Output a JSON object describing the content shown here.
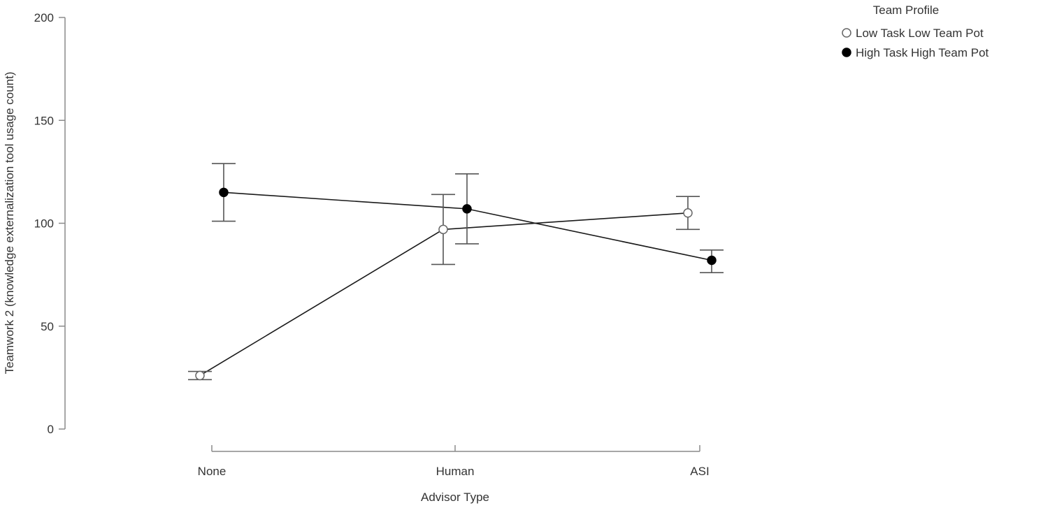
{
  "chart_data": {
    "type": "line",
    "title": "",
    "xlabel": "Advisor Type",
    "ylabel": "Teamwork 2 (knowledge externalization tool usage count)",
    "categories": [
      "None",
      "Human",
      "ASI"
    ],
    "ylim": [
      0,
      200
    ],
    "yticks": [
      0,
      50,
      100,
      150,
      200
    ],
    "grid": false,
    "legend": {
      "title": "Team Profile",
      "position": "top-right"
    },
    "series": [
      {
        "name": "Low Task Low Team Pot",
        "marker": "open-circle",
        "color": "#ffffff",
        "values": [
          26,
          97,
          105
        ],
        "error_lower": [
          24,
          80,
          97
        ],
        "error_upper": [
          28,
          114,
          113
        ]
      },
      {
        "name": "High Task High Team Pot",
        "marker": "filled-circle",
        "color": "#000000",
        "values": [
          115,
          107,
          82
        ],
        "error_lower": [
          101,
          90,
          76
        ],
        "error_upper": [
          129,
          124,
          87
        ]
      }
    ]
  }
}
